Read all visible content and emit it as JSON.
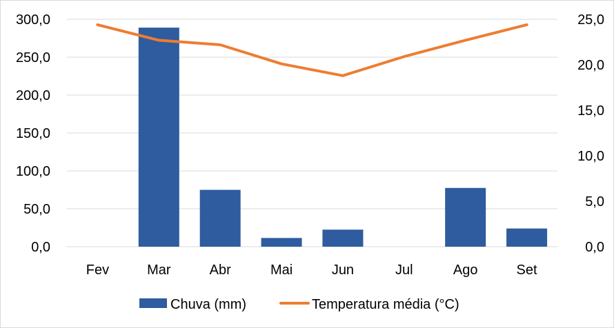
{
  "chart_data": {
    "type": "bar+line",
    "categories": [
      "Fev",
      "Mar",
      "Abr",
      "Mai",
      "Jun",
      "Jul",
      "Ago",
      "Set"
    ],
    "series": [
      {
        "name": "Chuva (mm)",
        "type": "bar",
        "axis": "left",
        "color": "#2E5C9E",
        "values": [
          0,
          289.0,
          75.0,
          11.5,
          22.5,
          0,
          77.5,
          24.0
        ]
      },
      {
        "name": "Temperatura média (°C)",
        "type": "line",
        "axis": "right",
        "color": "#ED7D31",
        "values": [
          24.4,
          22.7,
          22.2,
          20.1,
          18.8,
          20.9,
          22.7,
          24.4
        ]
      }
    ],
    "left_axis": {
      "ylim": [
        0,
        300
      ],
      "ticks": [
        0,
        50,
        100,
        150,
        200,
        250,
        300
      ],
      "tick_labels": [
        "0,0",
        "50,0",
        "100,0",
        "150,0",
        "200,0",
        "250,0",
        "300,0"
      ]
    },
    "right_axis": {
      "ylim": [
        0,
        25
      ],
      "ticks": [
        0,
        5,
        10,
        15,
        20,
        25
      ],
      "tick_labels": [
        "0,0",
        "5,0",
        "10,0",
        "15,0",
        "20,0",
        "25,0"
      ]
    },
    "grid": true,
    "legend_position": "bottom",
    "title": "",
    "xlabel": "",
    "ylabel": ""
  }
}
